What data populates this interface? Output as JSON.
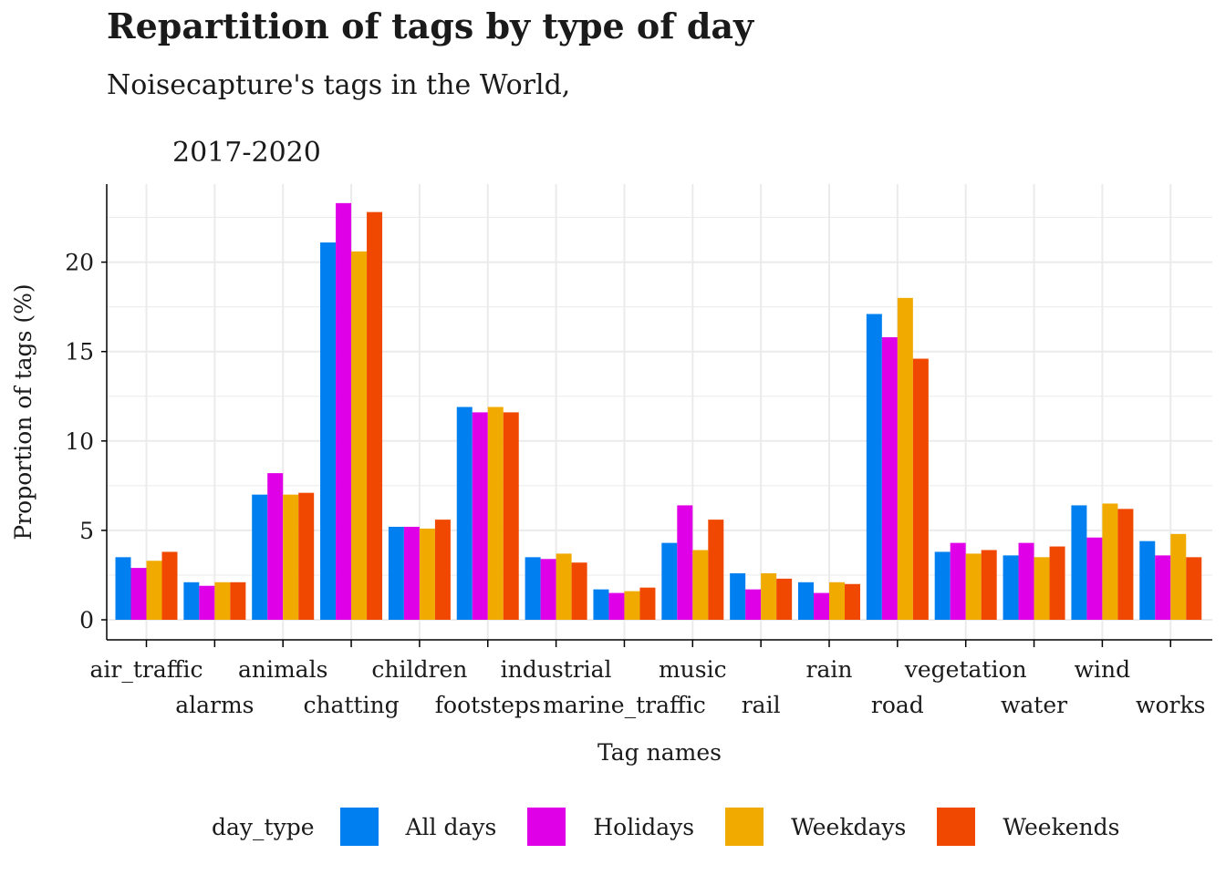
{
  "title": "Repartition of tags by type of day",
  "subtitle_line1": "Noisecapture's tags in the World,",
  "subtitle_line2": "2017-2020",
  "legend": {
    "title": "day_type",
    "items": [
      {
        "name": "All days",
        "color": "#0080f0"
      },
      {
        "name": "Holidays",
        "color": "#e000e8"
      },
      {
        "name": "Weekdays",
        "color": "#f0aa00"
      },
      {
        "name": "Weekends",
        "color": "#f04800"
      }
    ]
  },
  "chart_data": {
    "type": "bar",
    "title": "Repartition of tags by type of day",
    "subtitle": "Noisecapture's tags in the World, 2017-2020",
    "xlabel": "Tag names",
    "ylabel": "Proportion of tags (%)",
    "ylim": [
      0,
      24
    ],
    "yticks": [
      0,
      5,
      10,
      15,
      20
    ],
    "grid": true,
    "legend_position": "bottom",
    "categories": [
      "air_traffic",
      "alarms",
      "animals",
      "chatting",
      "children",
      "footsteps",
      "industrial",
      "marine_traffic",
      "music",
      "rail",
      "rain",
      "road",
      "vegetation",
      "water",
      "wind",
      "works"
    ],
    "series": [
      {
        "name": "All days",
        "color": "#0080f0",
        "values": [
          3.5,
          2.1,
          7.0,
          21.1,
          5.2,
          11.9,
          3.5,
          1.7,
          4.3,
          2.6,
          2.1,
          17.1,
          3.8,
          3.6,
          6.4,
          4.4
        ]
      },
      {
        "name": "Holidays",
        "color": "#e000e8",
        "values": [
          2.9,
          1.9,
          8.2,
          23.3,
          5.2,
          11.6,
          3.4,
          1.5,
          6.4,
          1.7,
          1.5,
          15.8,
          4.3,
          4.3,
          4.6,
          3.6
        ]
      },
      {
        "name": "Weekdays",
        "color": "#f0aa00",
        "values": [
          3.3,
          2.1,
          7.0,
          20.6,
          5.1,
          11.9,
          3.7,
          1.6,
          3.9,
          2.6,
          2.1,
          18.0,
          3.7,
          3.5,
          6.5,
          4.8
        ]
      },
      {
        "name": "Weekends",
        "color": "#f04800",
        "values": [
          3.8,
          2.1,
          7.1,
          22.8,
          5.6,
          11.6,
          3.2,
          1.8,
          5.6,
          2.3,
          2.0,
          14.6,
          3.9,
          4.1,
          6.2,
          3.5
        ]
      }
    ]
  }
}
